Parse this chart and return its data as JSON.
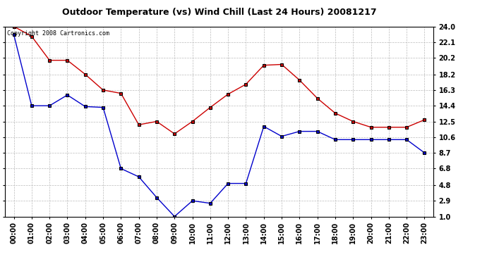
{
  "title": "Outdoor Temperature (vs) Wind Chill (Last 24 Hours) 20081217",
  "copyright_text": "Copyright 2008 Cartronics.com",
  "hours": [
    "00:00",
    "01:00",
    "02:00",
    "03:00",
    "04:00",
    "05:00",
    "06:00",
    "07:00",
    "08:00",
    "09:00",
    "10:00",
    "11:00",
    "12:00",
    "13:00",
    "14:00",
    "15:00",
    "16:00",
    "17:00",
    "18:00",
    "19:00",
    "20:00",
    "21:00",
    "22:00",
    "23:00"
  ],
  "temp_red": [
    24.0,
    22.8,
    19.9,
    19.9,
    18.2,
    16.3,
    15.9,
    12.1,
    12.5,
    11.0,
    12.5,
    14.2,
    15.8,
    17.0,
    19.3,
    19.4,
    17.5,
    15.3,
    13.5,
    12.5,
    11.8,
    11.8,
    11.8,
    12.7
  ],
  "wind_blue": [
    23.0,
    14.4,
    14.4,
    15.7,
    14.3,
    14.2,
    6.8,
    5.8,
    3.3,
    1.0,
    2.9,
    2.6,
    5.0,
    5.0,
    11.9,
    10.7,
    11.3,
    11.3,
    10.3,
    10.3,
    10.3,
    10.3,
    10.3,
    8.7
  ],
  "yticks": [
    1.0,
    2.9,
    4.8,
    6.8,
    8.7,
    10.6,
    12.5,
    14.4,
    16.3,
    18.2,
    20.2,
    22.1,
    24.0
  ],
  "ymin": 1.0,
  "ymax": 24.0,
  "bg_color": "#ffffff",
  "plot_bg_color": "#ffffff",
  "grid_color": "#bbbbbb",
  "red_color": "#cc0000",
  "blue_color": "#0000cc",
  "title_color": "#000000",
  "marker_color": "#000000",
  "title_fontsize": 9,
  "tick_fontsize": 7,
  "copyright_fontsize": 6
}
